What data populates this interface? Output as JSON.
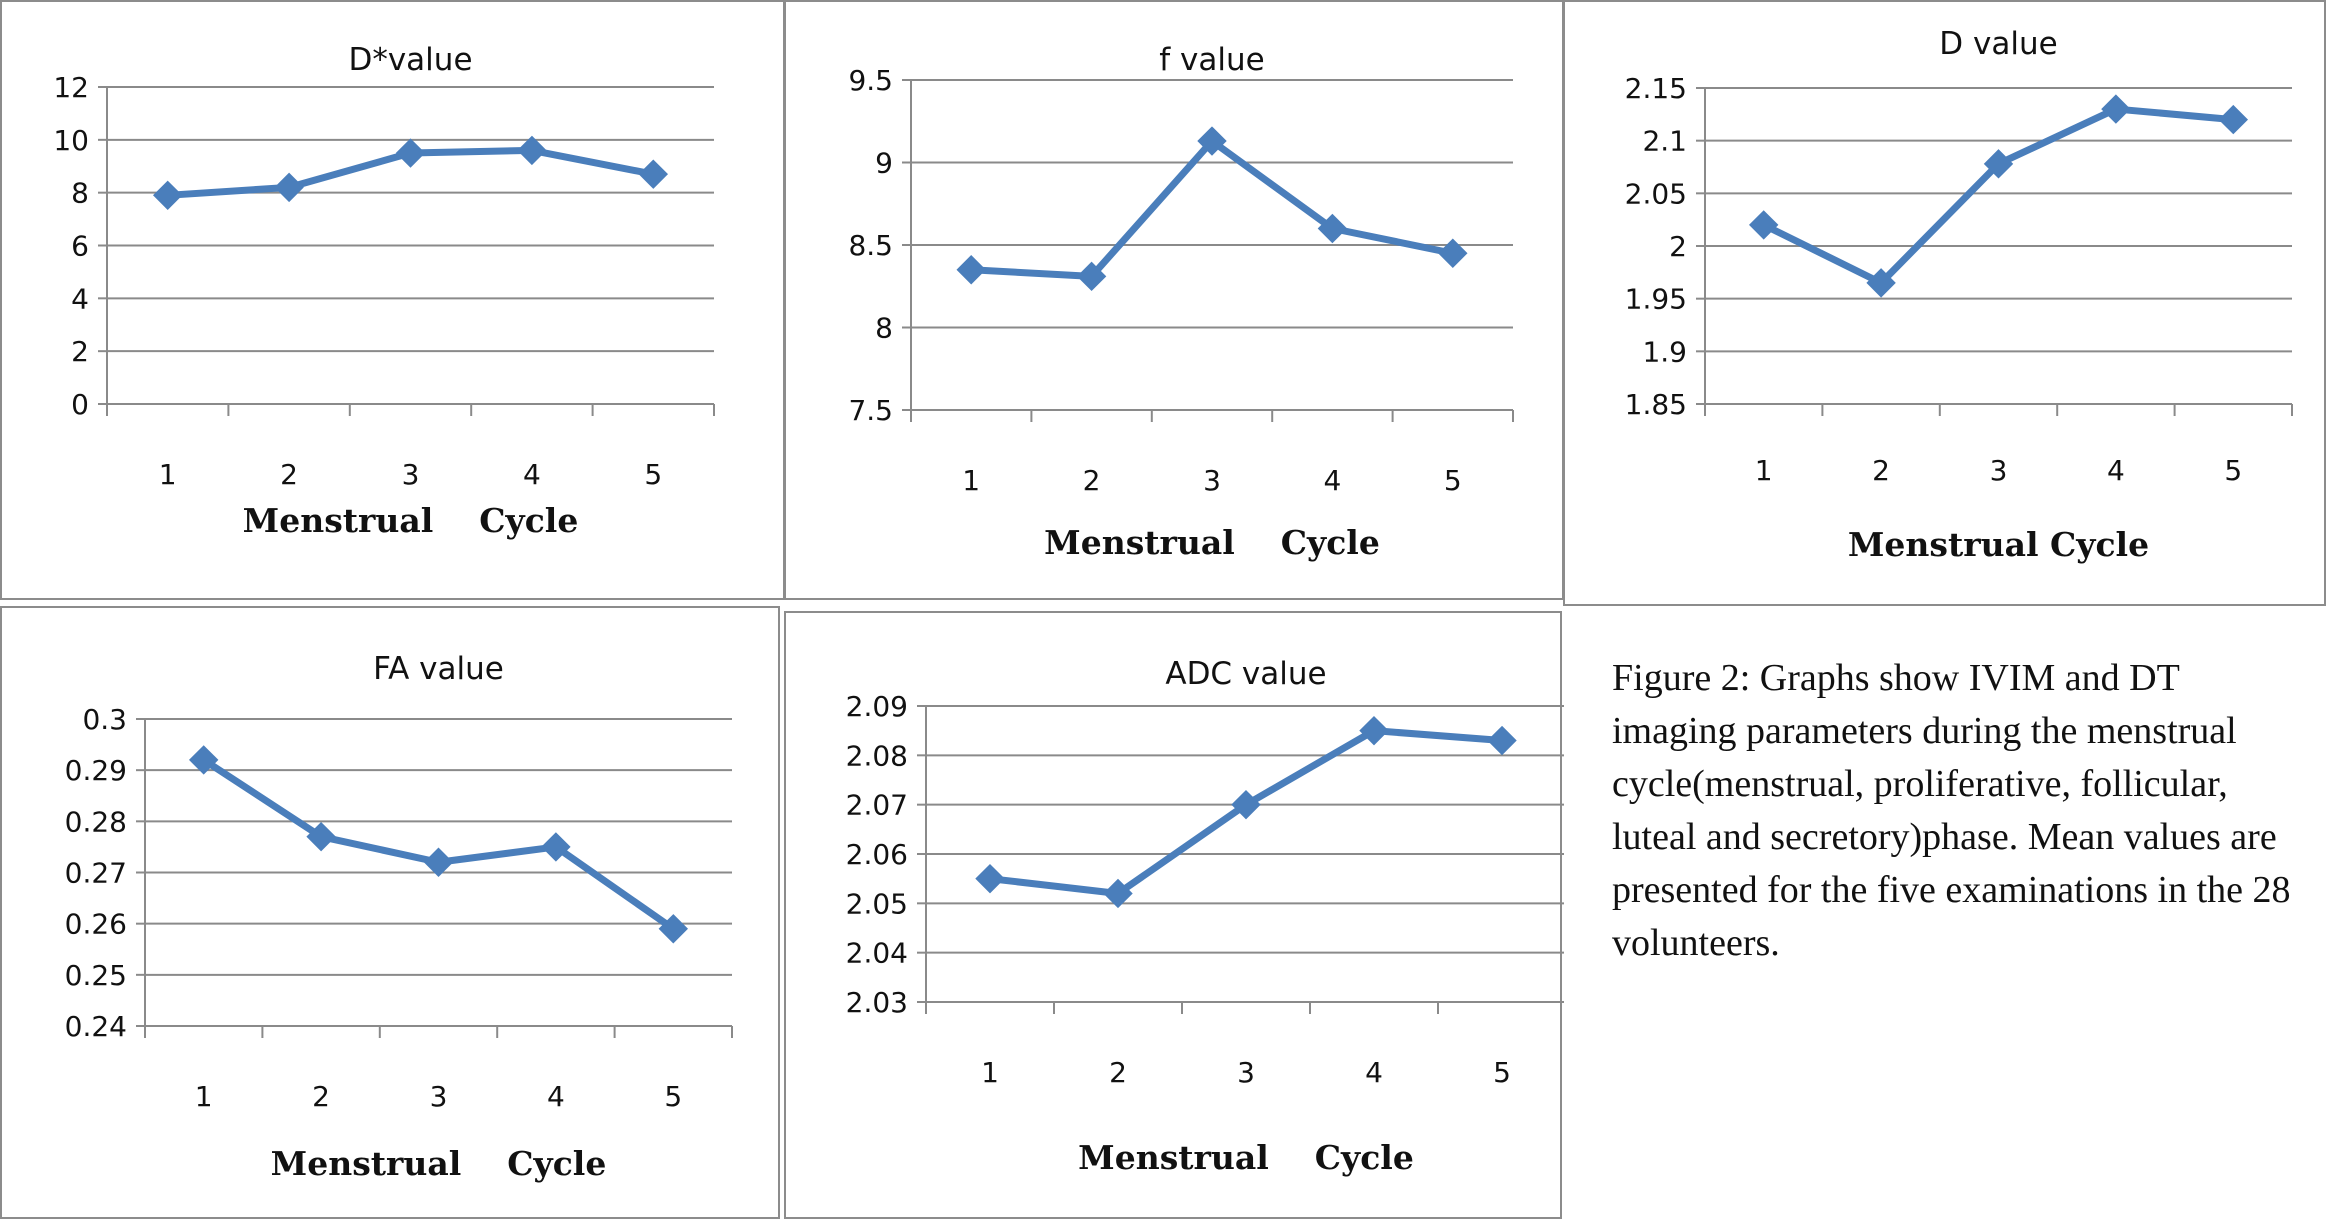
{
  "caption": "Figure 2: Graphs show IVIM and DT imaging parameters during the menstrual cycle(menstrual, proliferative, follicular, luteal and secretory)phase. Mean values are presented for the five examinations in the 28 volunteers.",
  "colors": {
    "line": "#4a7ebb",
    "grid": "#8a8a8a"
  },
  "chart_data": [
    {
      "type": "line",
      "title": "D*value",
      "xlabel": "Menstrual    Cycle",
      "ylabel": "",
      "categories": [
        "1",
        "2",
        "3",
        "4",
        "5"
      ],
      "values": [
        7.9,
        8.2,
        9.5,
        9.6,
        8.7
      ],
      "ylim": [
        0,
        12
      ],
      "yticks": [
        "0",
        "2",
        "4",
        "6",
        "8",
        "10",
        "12"
      ],
      "grid": true
    },
    {
      "type": "line",
      "title": "f value",
      "xlabel": "Menstrual    Cycle",
      "ylabel": "",
      "categories": [
        "1",
        "2",
        "3",
        "4",
        "5"
      ],
      "values": [
        8.35,
        8.31,
        9.13,
        8.6,
        8.45
      ],
      "ylim": [
        7.5,
        9.5
      ],
      "yticks": [
        "7.5",
        "8",
        "8.5",
        "9",
        "9.5"
      ],
      "grid": true
    },
    {
      "type": "line",
      "title": "D value",
      "xlabel": "Menstrual Cycle",
      "ylabel": "",
      "categories": [
        "1",
        "2",
        "3",
        "4",
        "5"
      ],
      "values": [
        2.02,
        1.965,
        2.078,
        2.13,
        2.12
      ],
      "ylim": [
        1.85,
        2.15
      ],
      "yticks": [
        "1.85",
        "1.9",
        "1.95",
        "2",
        "2.05",
        "2.1",
        "2.15"
      ],
      "grid": true
    },
    {
      "type": "line",
      "title": "FA value",
      "xlabel": "Menstrual    Cycle",
      "ylabel": "",
      "categories": [
        "1",
        "2",
        "3",
        "4",
        "5"
      ],
      "values": [
        0.292,
        0.277,
        0.272,
        0.275,
        0.259
      ],
      "ylim": [
        0.24,
        0.3
      ],
      "yticks": [
        "0.24",
        "0.25",
        "0.26",
        "0.27",
        "0.28",
        "0.29",
        "0.3"
      ],
      "grid": true
    },
    {
      "type": "line",
      "title": "ADC value",
      "xlabel": "Menstrual    Cycle",
      "ylabel": "",
      "categories": [
        "1",
        "2",
        "3",
        "4",
        "5"
      ],
      "values": [
        2.055,
        2.052,
        2.07,
        2.085,
        2.083
      ],
      "ylim": [
        2.03,
        2.09
      ],
      "yticks": [
        "2.03",
        "2.04",
        "2.05",
        "2.06",
        "2.07",
        "2.08",
        "2.09"
      ],
      "grid": true
    }
  ]
}
